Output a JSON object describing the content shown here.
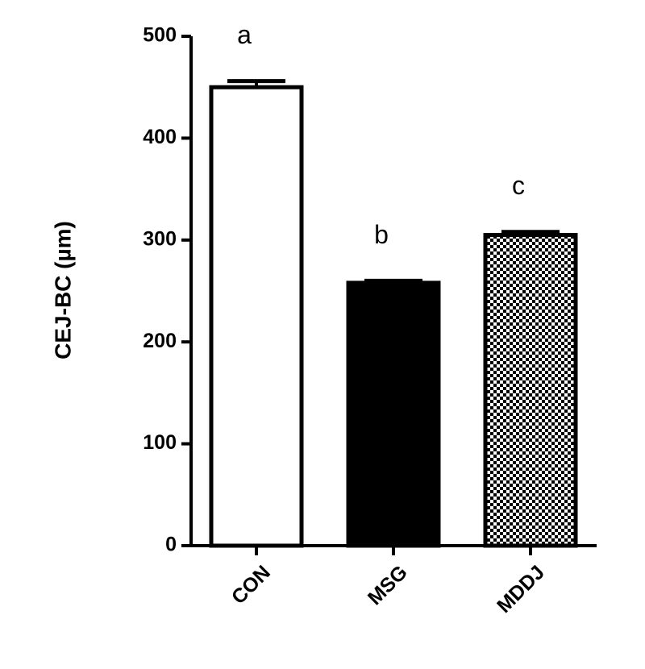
{
  "chart_data": {
    "type": "bar",
    "y_label": "CEJ-BC (µm)",
    "categories": [
      "CON",
      "MSG",
      "MDDJ"
    ],
    "values": [
      450,
      258,
      305
    ],
    "errors": [
      6,
      2,
      3
    ],
    "annotations": [
      "a",
      "b",
      "c"
    ],
    "bar_fills": [
      "#ffffff",
      "#000000",
      "checkered"
    ],
    "ylim": [
      0,
      500
    ],
    "yticks": [
      0,
      100,
      200,
      300,
      400,
      500
    ]
  }
}
